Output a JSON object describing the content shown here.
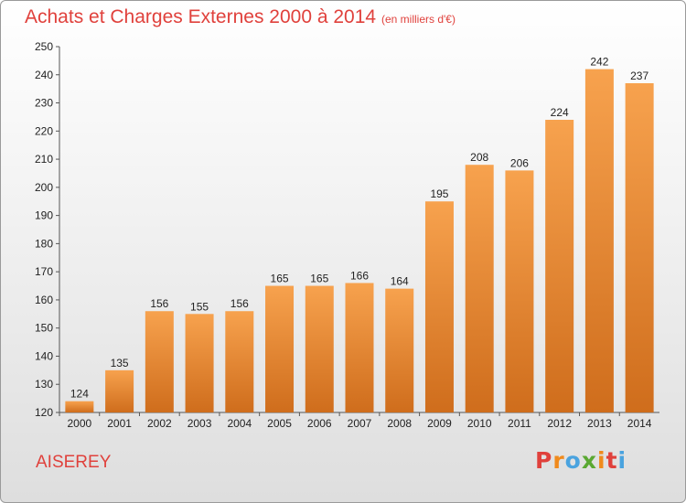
{
  "header": {
    "title": "Achats et Charges Externes 2000 à 2014",
    "subtitle": "(en milliers d'€)"
  },
  "footer": {
    "commune": "AISEREY",
    "logo": "Proxiti"
  },
  "colors": {
    "title": "#e0413c",
    "bar_top": "#f7a24e",
    "bar_bottom": "#cf6d1c",
    "logo_letters": [
      "#e0413c",
      "#f08a1c",
      "#4aa3df",
      "#5aa832",
      "#f08a1c",
      "#e0413c",
      "#4aa3df"
    ]
  },
  "chart_data": {
    "type": "bar",
    "categories": [
      "2000",
      "2001",
      "2002",
      "2003",
      "2004",
      "2005",
      "2006",
      "2007",
      "2008",
      "2009",
      "2010",
      "2011",
      "2012",
      "2013",
      "2014"
    ],
    "values": [
      124,
      135,
      156,
      155,
      156,
      165,
      165,
      166,
      164,
      195,
      208,
      206,
      224,
      242,
      237
    ],
    "title": "Achats et Charges Externes 2000 à 2014",
    "subtitle": "(en milliers d'€)",
    "xlabel": "",
    "ylabel": "",
    "ylim": [
      120,
      250
    ],
    "yticks": [
      120,
      130,
      140,
      150,
      160,
      170,
      180,
      190,
      200,
      210,
      220,
      230,
      240,
      250
    ],
    "grid": false,
    "data_labels": true
  }
}
